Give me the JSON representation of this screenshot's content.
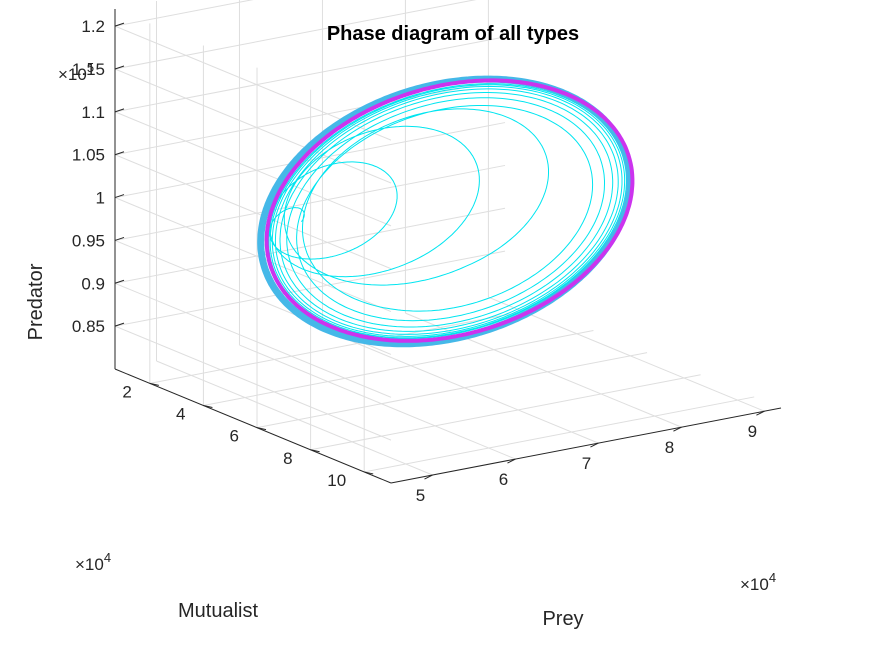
{
  "chart_data": {
    "type": "line",
    "title": "Phase diagram of all types",
    "xlabel": "Prey",
    "ylabel": "Mutualist",
    "zlabel": "Predator",
    "x_multiplier": "×10",
    "x_multiplier_exp": "4",
    "y_multiplier": "×10",
    "y_multiplier_exp": "4",
    "z_multiplier": "×10",
    "z_multiplier_exp": "5",
    "x_ticks": [
      "5",
      "6",
      "7",
      "8",
      "9"
    ],
    "y_ticks": [
      "2",
      "4",
      "6",
      "8",
      "10"
    ],
    "z_ticks": [
      "0.85",
      "0.9",
      "0.95",
      "1",
      "1.05",
      "1.1",
      "1.15",
      "1.2"
    ],
    "xlim": [
      4.5,
      9.2
    ],
    "ylim": [
      0.7,
      11
    ],
    "zlim": [
      0.8,
      1.22
    ],
    "grid": true,
    "colors": {
      "transient": "#00e5f0",
      "limit_cycle_outer": "#45b8e8",
      "limit_cycle_inner": "#cc33ee"
    },
    "series": [
      {
        "style": "transient spiral from start point",
        "start": {
          "prey": 6.5,
          "mutualist": 1.0,
          "predator": 0.93
        }
      },
      {
        "style": "limit cycle",
        "center": {
          "prey": 6.8,
          "mutualist": 6.0,
          "predator": 1.01
        }
      }
    ]
  }
}
